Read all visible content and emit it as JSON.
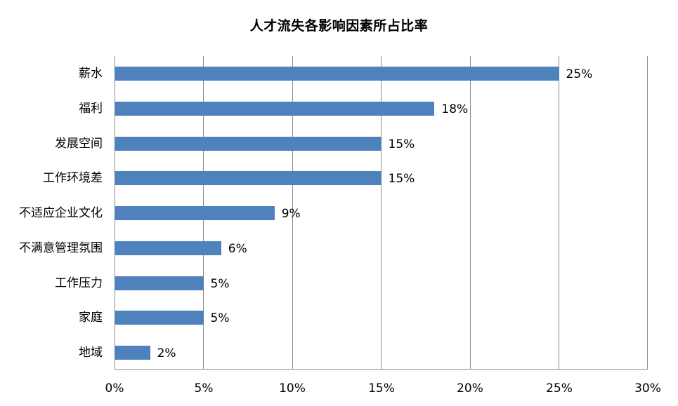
{
  "chart_data": {
    "type": "bar",
    "orientation": "horizontal",
    "title": "人才流失各影响因素所占比率",
    "xlabel": "",
    "ylabel": "",
    "categories": [
      "薪水",
      "福利",
      "发展空间",
      "工作环境差",
      "不适应企业文化",
      "不满意管理氛围",
      "工作压力",
      "家庭",
      "地域"
    ],
    "values": [
      25,
      18,
      15,
      15,
      9,
      6,
      5,
      5,
      2
    ],
    "value_labels": [
      "25%",
      "18%",
      "15%",
      "15%",
      "9%",
      "6%",
      "5%",
      "5%",
      "2%"
    ],
    "xlim": [
      0,
      30
    ],
    "x_ticks": [
      "0%",
      "5%",
      "10%",
      "15%",
      "20%",
      "25%",
      "30%"
    ],
    "grid": "vertical",
    "legend": "none",
    "bar_color": "#4F81BD"
  }
}
